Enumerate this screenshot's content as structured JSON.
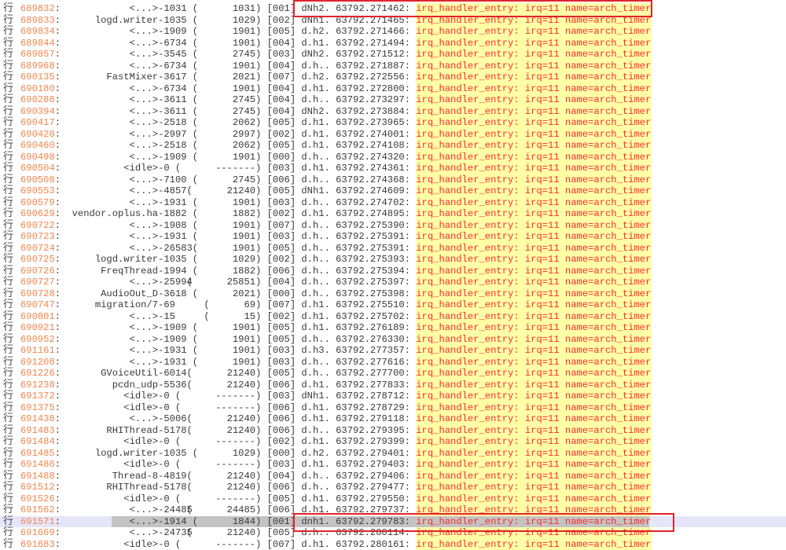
{
  "row_marker": "行",
  "selected_line": "691571",
  "colors": {
    "line_number": "#f0874e",
    "event_text": "#ff2a2a",
    "event_highlight": "#ffffa8",
    "current_line": "#e6e6fa",
    "selection": "#c3c3c3",
    "annotation_box": "#e0242c"
  },
  "rows": [
    {
      "line": "689832",
      "comm": "<...>",
      "pid": "1031",
      "tgid": "1031",
      "cpu": "001",
      "flags": "dNh2.",
      "ts": "63792.271462",
      "event": "irq_handler_entry: irq=11 name=arch_timer"
    },
    {
      "line": "689833",
      "comm": "logd.writer",
      "pid": "1035",
      "tgid": "1029",
      "cpu": "002",
      "flags": "dNh1.",
      "ts": "63792.271465",
      "event": "irq_handler_entry: irq=11 name=arch_timer"
    },
    {
      "line": "689834",
      "comm": "<...>",
      "pid": "1909",
      "tgid": "1901",
      "cpu": "005",
      "flags": "d.h2.",
      "ts": "63792.271466",
      "event": "irq_handler_entry: irq=11 name=arch_timer"
    },
    {
      "line": "689844",
      "comm": "<...>",
      "pid": "6734",
      "tgid": "1901",
      "cpu": "004",
      "flags": "d.h1.",
      "ts": "63792.271494",
      "event": "irq_handler_entry: irq=11 name=arch_timer"
    },
    {
      "line": "689857",
      "comm": "<...>",
      "pid": "3545",
      "tgid": "2745",
      "cpu": "003",
      "flags": "dNh2.",
      "ts": "63792.271512",
      "event": "irq_handler_entry: irq=11 name=arch_timer"
    },
    {
      "line": "689968",
      "comm": "<...>",
      "pid": "6734",
      "tgid": "1901",
      "cpu": "004",
      "flags": "d.h..",
      "ts": "63792.271887",
      "event": "irq_handler_entry: irq=11 name=arch_timer"
    },
    {
      "line": "690135",
      "comm": "FastMixer",
      "pid": "3617",
      "tgid": "2021",
      "cpu": "007",
      "flags": "d.h2.",
      "ts": "63792.272556",
      "event": "irq_handler_entry: irq=11 name=arch_timer"
    },
    {
      "line": "690180",
      "comm": "<...>",
      "pid": "6734",
      "tgid": "1901",
      "cpu": "004",
      "flags": "d.h1.",
      "ts": "63792.272800",
      "event": "irq_handler_entry: irq=11 name=arch_timer"
    },
    {
      "line": "690288",
      "comm": "<...>",
      "pid": "3611",
      "tgid": "2745",
      "cpu": "004",
      "flags": "d.h..",
      "ts": "63792.273297",
      "event": "irq_handler_entry: irq=11 name=arch_timer"
    },
    {
      "line": "690394",
      "comm": "<...>",
      "pid": "3611",
      "tgid": "2745",
      "cpu": "004",
      "flags": "dNh2.",
      "ts": "63792.273884",
      "event": "irq_handler_entry: irq=11 name=arch_timer"
    },
    {
      "line": "690417",
      "comm": "<...>",
      "pid": "2518",
      "tgid": "2062",
      "cpu": "005",
      "flags": "d.h1.",
      "ts": "63792.273965",
      "event": "irq_handler_entry: irq=11 name=arch_timer"
    },
    {
      "line": "690428",
      "comm": "<...>",
      "pid": "2997",
      "tgid": "2997",
      "cpu": "002",
      "flags": "d.h1.",
      "ts": "63792.274001",
      "event": "irq_handler_entry: irq=11 name=arch_timer"
    },
    {
      "line": "690460",
      "comm": "<...>",
      "pid": "2518",
      "tgid": "2062",
      "cpu": "005",
      "flags": "d.h1.",
      "ts": "63792.274108",
      "event": "irq_handler_entry: irq=11 name=arch_timer"
    },
    {
      "line": "690498",
      "comm": "<...>",
      "pid": "1909",
      "tgid": "1901",
      "cpu": "000",
      "flags": "d.h..",
      "ts": "63792.274320",
      "event": "irq_handler_entry: irq=11 name=arch_timer"
    },
    {
      "line": "690504",
      "comm": "<idle>",
      "pid": "0",
      "tgid": "-------",
      "cpu": "003",
      "flags": "d.h1.",
      "ts": "63792.274361",
      "event": "irq_handler_entry: irq=11 name=arch_timer"
    },
    {
      "line": "690508",
      "comm": "<...>",
      "pid": "7100",
      "tgid": "2745",
      "cpu": "006",
      "flags": "d.h..",
      "ts": "63792.274368",
      "event": "irq_handler_entry: irq=11 name=arch_timer"
    },
    {
      "line": "690553",
      "comm": "<...>",
      "pid": "4857",
      "tgid": "21240",
      "cpu": "005",
      "flags": "dNh1.",
      "ts": "63792.274609",
      "event": "irq_handler_entry: irq=11 name=arch_timer"
    },
    {
      "line": "690579",
      "comm": "<...>",
      "pid": "1931",
      "tgid": "1901",
      "cpu": "003",
      "flags": "d.h..",
      "ts": "63792.274702",
      "event": "irq_handler_entry: irq=11 name=arch_timer"
    },
    {
      "line": "690629",
      "comm": "vendor.oplus.ha",
      "pid": "1882",
      "tgid": "1882",
      "cpu": "002",
      "flags": "d.h1.",
      "ts": "63792.274895",
      "event": "irq_handler_entry: irq=11 name=arch_timer"
    },
    {
      "line": "690722",
      "comm": "<...>",
      "pid": "1908",
      "tgid": "1901",
      "cpu": "007",
      "flags": "d.h..",
      "ts": "63792.275390",
      "event": "irq_handler_entry: irq=11 name=arch_timer"
    },
    {
      "line": "690723",
      "comm": "<...>",
      "pid": "1931",
      "tgid": "1901",
      "cpu": "003",
      "flags": "d.h..",
      "ts": "63792.275391",
      "event": "irq_handler_entry: irq=11 name=arch_timer"
    },
    {
      "line": "690724",
      "comm": "<...>",
      "pid": "26583",
      "tgid": "1901",
      "cpu": "005",
      "flags": "d.h..",
      "ts": "63792.275391",
      "event": "irq_handler_entry: irq=11 name=arch_timer"
    },
    {
      "line": "690725",
      "comm": "logd.writer",
      "pid": "1035",
      "tgid": "1029",
      "cpu": "002",
      "flags": "d.h..",
      "ts": "63792.275393",
      "event": "irq_handler_entry: irq=11 name=arch_timer"
    },
    {
      "line": "690726",
      "comm": "FreqThread",
      "pid": "1994",
      "tgid": "1882",
      "cpu": "006",
      "flags": "d.h..",
      "ts": "63792.275394",
      "event": "irq_handler_entry: irq=11 name=arch_timer"
    },
    {
      "line": "690727",
      "comm": "<...>",
      "pid": "25994",
      "tgid": "25851",
      "cpu": "004",
      "flags": "d.h..",
      "ts": "63792.275397",
      "event": "irq_handler_entry: irq=11 name=arch_timer"
    },
    {
      "line": "690728",
      "comm": "AudioOut_D",
      "pid": "3618",
      "tgid": "2021",
      "cpu": "000",
      "flags": "d.h..",
      "ts": "63792.275398",
      "event": "irq_handler_entry: irq=11 name=arch_timer"
    },
    {
      "line": "690747",
      "comm": "migration/7",
      "pid": "69",
      "tgid": "69",
      "cpu": "007",
      "flags": "d.h1.",
      "ts": "63792.275510",
      "event": "irq_handler_entry: irq=11 name=arch_timer"
    },
    {
      "line": "690801",
      "comm": "<...>",
      "pid": "15",
      "tgid": "15",
      "cpu": "002",
      "flags": "d.h1.",
      "ts": "63792.275702",
      "event": "irq_handler_entry: irq=11 name=arch_timer"
    },
    {
      "line": "690921",
      "comm": "<...>",
      "pid": "1909",
      "tgid": "1901",
      "cpu": "005",
      "flags": "d.h1.",
      "ts": "63792.276189",
      "event": "irq_handler_entry: irq=11 name=arch_timer"
    },
    {
      "line": "690952",
      "comm": "<...>",
      "pid": "1909",
      "tgid": "1901",
      "cpu": "005",
      "flags": "d.h..",
      "ts": "63792.276330",
      "event": "irq_handler_entry: irq=11 name=arch_timer"
    },
    {
      "line": "691161",
      "comm": "<...>",
      "pid": "1931",
      "tgid": "1901",
      "cpu": "003",
      "flags": "d.h3.",
      "ts": "63792.277357",
      "event": "irq_handler_entry: irq=11 name=arch_timer"
    },
    {
      "line": "691208",
      "comm": "<...>",
      "pid": "1931",
      "tgid": "1901",
      "cpu": "003",
      "flags": "d.h..",
      "ts": "63792.277616",
      "event": "irq_handler_entry: irq=11 name=arch_timer"
    },
    {
      "line": "691226",
      "comm": "GVoiceUtil",
      "pid": "6014",
      "tgid": "21240",
      "cpu": "005",
      "flags": "d.h..",
      "ts": "63792.277700",
      "event": "irq_handler_entry: irq=11 name=arch_timer"
    },
    {
      "line": "691238",
      "comm": "pcdn_udp",
      "pid": "5536",
      "tgid": "21240",
      "cpu": "006",
      "flags": "d.h1.",
      "ts": "63792.277833",
      "event": "irq_handler_entry: irq=11 name=arch_timer"
    },
    {
      "line": "691372",
      "comm": "<idle>",
      "pid": "0",
      "tgid": "-------",
      "cpu": "003",
      "flags": "dNh1.",
      "ts": "63792.278712",
      "event": "irq_handler_entry: irq=11 name=arch_timer"
    },
    {
      "line": "691375",
      "comm": "<idle>",
      "pid": "0",
      "tgid": "-------",
      "cpu": "006",
      "flags": "d.h1.",
      "ts": "63792.278729",
      "event": "irq_handler_entry: irq=11 name=arch_timer"
    },
    {
      "line": "691438",
      "comm": "<...>",
      "pid": "5006",
      "tgid": "21240",
      "cpu": "006",
      "flags": "d.h1.",
      "ts": "63792.279118",
      "event": "irq_handler_entry: irq=11 name=arch_timer"
    },
    {
      "line": "691483",
      "comm": "RHIThread",
      "pid": "5178",
      "tgid": "21240",
      "cpu": "006",
      "flags": "d.h..",
      "ts": "63792.279395",
      "event": "irq_handler_entry: irq=11 name=arch_timer"
    },
    {
      "line": "691484",
      "comm": "<idle>",
      "pid": "0",
      "tgid": "-------",
      "cpu": "002",
      "flags": "d.h1.",
      "ts": "63792.279399",
      "event": "irq_handler_entry: irq=11 name=arch_timer"
    },
    {
      "line": "691485",
      "comm": "logd.writer",
      "pid": "1035",
      "tgid": "1029",
      "cpu": "000",
      "flags": "d.h2.",
      "ts": "63792.279401",
      "event": "irq_handler_entry: irq=11 name=arch_timer"
    },
    {
      "line": "691486",
      "comm": "<idle>",
      "pid": "0",
      "tgid": "-------",
      "cpu": "003",
      "flags": "d.h1.",
      "ts": "63792.279403",
      "event": "irq_handler_entry: irq=11 name=arch_timer"
    },
    {
      "line": "691488",
      "comm": "Thread-8",
      "pid": "4819",
      "tgid": "21240",
      "cpu": "004",
      "flags": "d.h..",
      "ts": "63792.279406",
      "event": "irq_handler_entry: irq=11 name=arch_timer"
    },
    {
      "line": "691512",
      "comm": "RHIThread",
      "pid": "5178",
      "tgid": "21240",
      "cpu": "006",
      "flags": "d.h..",
      "ts": "63792.279477",
      "event": "irq_handler_entry: irq=11 name=arch_timer"
    },
    {
      "line": "691526",
      "comm": "<idle>",
      "pid": "0",
      "tgid": "-------",
      "cpu": "005",
      "flags": "d.h1.",
      "ts": "63792.279550",
      "event": "irq_handler_entry: irq=11 name=arch_timer"
    },
    {
      "line": "691562",
      "comm": "<...>",
      "pid": "24485",
      "tgid": "24485",
      "cpu": "006",
      "flags": "d.h1.",
      "ts": "63792.279737",
      "event": "irq_handler_entry: irq=11 name=arch_timer"
    },
    {
      "line": "691571",
      "comm": "<...>",
      "pid": "1914",
      "tgid": "1844",
      "cpu": "001",
      "flags": "dnh1.",
      "ts": "63792.279783",
      "event": "irq_handler_entry: irq=11 name=arch_timer"
    },
    {
      "line": "691669",
      "comm": "<...>",
      "pid": "24735",
      "tgid": "21240",
      "cpu": "005",
      "flags": "d.h..",
      "ts": "63792.280114",
      "event": "irq_handler_entry: irq=11 name=arch_timer"
    },
    {
      "line": "691683",
      "comm": "<idle>",
      "pid": "0",
      "tgid": "-------",
      "cpu": "007",
      "flags": "d.h1.",
      "ts": "63792.280161",
      "event": "irq_handler_entry: irq=11 name=arch_timer"
    }
  ],
  "annotated_lines": [
    "689832",
    "691571"
  ]
}
